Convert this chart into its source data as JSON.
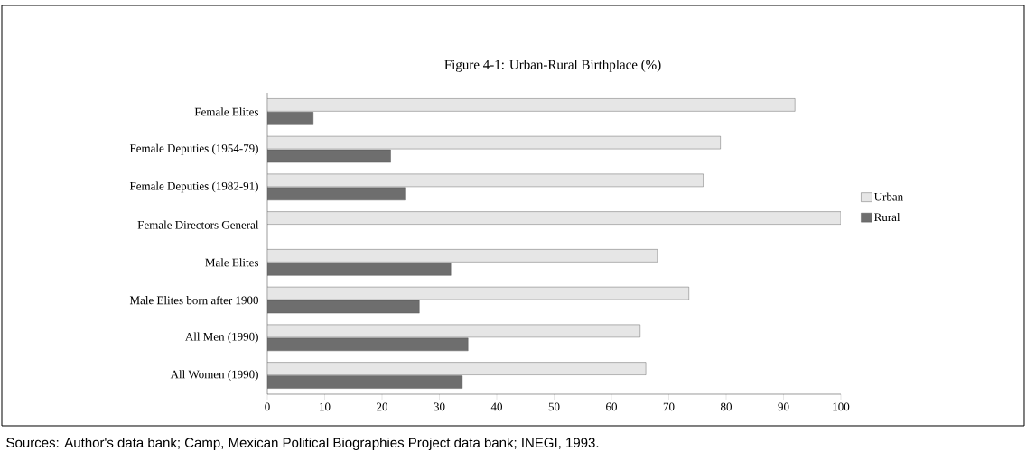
{
  "chart_data": {
    "type": "bar",
    "orientation": "horizontal",
    "title": "Figure 4-1: Urban-Rural Birthplace (%)",
    "categories": [
      "Female Elites",
      "Female Deputies (1954-79)",
      "Female Deputies (1982-91)",
      "Female Directors General",
      "Male Elites",
      "Male Elites born after 1900",
      "All Men (1990)",
      "All Women (1990)"
    ],
    "series": [
      {
        "name": "Urban",
        "color": "#e6e6e6",
        "values": [
          92,
          79,
          76,
          100,
          68,
          73.5,
          65,
          66
        ]
      },
      {
        "name": "Rural",
        "color": "#6e6e6e",
        "values": [
          8,
          21.5,
          24,
          null,
          32,
          26.5,
          35,
          34
        ]
      }
    ],
    "xlim": [
      0,
      100
    ],
    "xticks": [
      0,
      10,
      20,
      30,
      40,
      50,
      60,
      70,
      80,
      90,
      100
    ],
    "legend": "right",
    "annotations": [
      "Sources: Author's data bank; Camp, Mexican Political Biographies Project data bank; INEGI, 1993."
    ]
  }
}
